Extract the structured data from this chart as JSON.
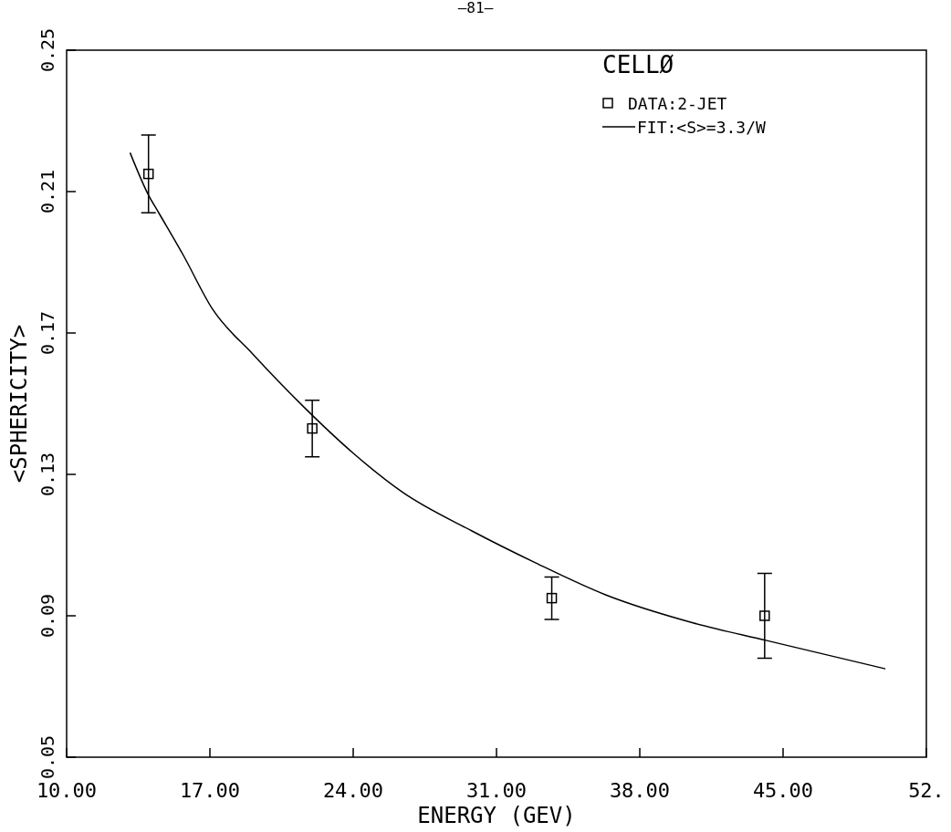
{
  "chart_data": {
    "type": "scatter",
    "xlabel": "ENERGY (GEV)",
    "ylabel": "<SPHERICITY>",
    "legend_title": "CELLØ",
    "annotations": [
      "—81—"
    ],
    "xlim": [
      10,
      52
    ],
    "xticks": [
      {
        "value": 10,
        "label": "10.00"
      },
      {
        "value": 17,
        "label": "17.00"
      },
      {
        "value": 24,
        "label": "24.00"
      },
      {
        "value": 31,
        "label": "31.00"
      },
      {
        "value": 38,
        "label": "38.00"
      },
      {
        "value": 45,
        "label": "45.00"
      },
      {
        "value": 52,
        "label": "52."
      }
    ],
    "ylim": [
      0.05,
      0.25
    ],
    "yticks": [
      0.05,
      0.09,
      0.13,
      0.17,
      0.21,
      0.25
    ],
    "grid": false,
    "legend": "top right",
    "series": [
      {
        "name": "DATA:2-JET",
        "marker": "square",
        "color": "#000000",
        "x": [
          14.0,
          22.0,
          33.7,
          44.1
        ],
        "values": [
          0.215,
          0.143,
          0.095,
          0.09
        ],
        "errors": [
          0.011,
          0.008,
          0.006,
          0.012
        ]
      },
      {
        "name": "FIT:<S>=3.3/W",
        "type": "line",
        "marker": "none",
        "line_style": "solid",
        "color": "#000000",
        "x": [
          13.1,
          14.0,
          14.5,
          15.7,
          17.1,
          19.1,
          21.6,
          24.0,
          26.4,
          29.8,
          32.9,
          36.3,
          40.6,
          44.2,
          50.0
        ],
        "values": [
          0.221,
          0.209,
          0.204,
          0.192,
          0.177,
          0.164,
          0.149,
          0.136,
          0.125,
          0.114,
          0.105,
          0.096,
          0.088,
          0.083,
          0.075
        ]
      }
    ]
  }
}
